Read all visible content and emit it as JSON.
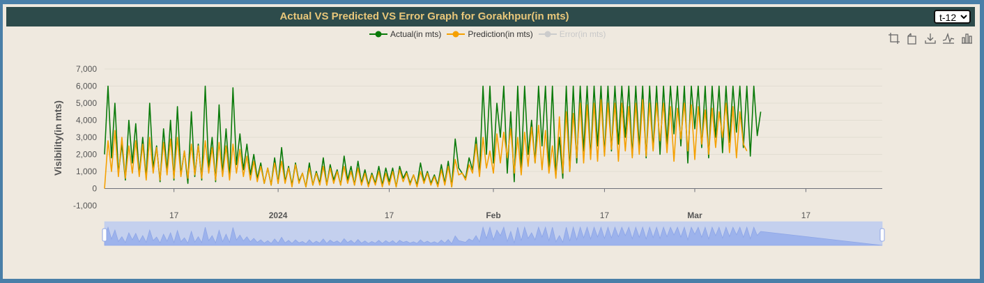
{
  "header": {
    "title": "Actual VS Predicted VS Error Graph for Gorakhpur(in mts)",
    "selector_value": "t-12"
  },
  "legend": {
    "items": [
      {
        "label": "Actual(in mts)",
        "color": "#0a7a0a",
        "active": true
      },
      {
        "label": "Prediction(in mts)",
        "color": "#f5a000",
        "active": true
      },
      {
        "label": "Error(in mts)",
        "color": "#cccccc",
        "active": false
      }
    ]
  },
  "toolbox": [
    "zoom-icon",
    "zoom-reset-icon",
    "download-icon",
    "line-chart-icon",
    "bar-chart-icon"
  ],
  "chart_data": {
    "type": "line",
    "title": "Actual VS Predicted VS Error Graph for Gorakhpur(in mts)",
    "ylabel": "Visibility(in mts)",
    "ylim": [
      -1000,
      7000
    ],
    "yticks": [
      "7,000",
      "6,000",
      "5,000",
      "4,000",
      "3,000",
      "2,000",
      "1,000",
      "0",
      "-1,000"
    ],
    "xrange": [
      "2023-12-07",
      "2024-03-28"
    ],
    "xticks": [
      {
        "label": "17",
        "date": "2023-12-17",
        "bold": false
      },
      {
        "label": "2024",
        "date": "2024-01-01",
        "bold": true
      },
      {
        "label": "17",
        "date": "2024-01-17",
        "bold": false
      },
      {
        "label": "Feb",
        "date": "2024-02-01",
        "bold": true
      },
      {
        "label": "17",
        "date": "2024-02-17",
        "bold": false
      },
      {
        "label": "Mar",
        "date": "2024-03-01",
        "bold": true
      },
      {
        "label": "17",
        "date": "2024-03-17",
        "bold": false
      }
    ],
    "series": [
      {
        "name": "Actual(in mts)",
        "color": "#0a7a0a",
        "sample_every_hours": 12,
        "start": "2023-12-07",
        "values": [
          2000,
          6000,
          1800,
          5000,
          900,
          2600,
          500,
          4000,
          1500,
          3800,
          800,
          3000,
          600,
          5000,
          1200,
          2500,
          400,
          3500,
          1000,
          4000,
          500,
          4800,
          800,
          2200,
          300,
          4500,
          700,
          2600,
          500,
          6000,
          1200,
          3000,
          400,
          4900,
          800,
          3500,
          600,
          5900,
          1400,
          3200,
          1100,
          2600,
          800,
          2000,
          600,
          1500,
          300,
          1200,
          200,
          1800,
          300,
          2400,
          400,
          1300,
          200,
          1500,
          400,
          900,
          100,
          1500,
          200,
          1000,
          300,
          1800,
          200,
          1400,
          500,
          1100,
          200,
          1900,
          500,
          1300,
          200,
          1600,
          300,
          1100,
          200,
          900,
          300,
          1300,
          200,
          1200,
          400,
          1200,
          100,
          1300,
          600,
          1000,
          300,
          800,
          200,
          1500,
          400,
          1000,
          300,
          800,
          200,
          1400,
          300,
          1600,
          100,
          2900,
          1200,
          900,
          600,
          1800,
          1100,
          3000,
          800,
          6000,
          2000,
          6000,
          1500,
          5000,
          3000,
          6000,
          900,
          4500,
          400,
          6000,
          1200,
          6000,
          2000,
          4000,
          1500,
          6000,
          2500,
          6000,
          1200,
          6000,
          800,
          3000,
          600,
          6000,
          1000,
          6000,
          1500,
          6000,
          2200,
          6000,
          1800,
          6000,
          2500,
          6000,
          2000,
          6000,
          2200,
          6000,
          2600,
          6000,
          3000,
          6000,
          1900,
          6000,
          2400,
          6000,
          1800,
          6000,
          2300,
          6000,
          2000,
          6000,
          2600,
          6000,
          3200,
          6000,
          2500,
          6000,
          1500,
          6000,
          3500,
          6000,
          2400,
          6000,
          1800,
          6000,
          3000,
          6000,
          2100,
          6000,
          2700,
          6000,
          3300,
          6000,
          2400,
          6000,
          1900,
          6000,
          3100,
          4500
        ]
      },
      {
        "name": "Prediction(in mts)",
        "color": "#f5a000",
        "sample_every_hours": 12,
        "start": "2023-12-07",
        "values": [
          0,
          2800,
          1000,
          3400,
          700,
          3000,
          600,
          2500,
          900,
          2800,
          700,
          2600,
          500,
          3000,
          900,
          2400,
          500,
          2700,
          800,
          2900,
          600,
          3000,
          700,
          2200,
          600,
          2600,
          800,
          2500,
          600,
          2800,
          900,
          2400,
          500,
          2700,
          700,
          2500,
          500,
          2600,
          900,
          2300,
          700,
          1900,
          500,
          1600,
          400,
          1300,
          300,
          1200,
          200,
          1500,
          300,
          1600,
          300,
          1200,
          100,
          1400,
          300,
          900,
          100,
          1200,
          200,
          900,
          200,
          1300,
          200,
          1200,
          300,
          1000,
          200,
          1300,
          300,
          1000,
          200,
          1200,
          200,
          900,
          100,
          800,
          200,
          1000,
          100,
          900,
          200,
          1000,
          100,
          1100,
          400,
          900,
          200,
          800,
          100,
          1000,
          300,
          900,
          200,
          700,
          100,
          1100,
          200,
          1300,
          100,
          1700,
          800,
          900,
          500,
          1400,
          900,
          2600,
          700,
          3000,
          1200,
          2200,
          900,
          3200,
          1500,
          3300,
          1800,
          3500,
          900,
          3000,
          800,
          3300,
          1300,
          3600,
          1500,
          3700,
          1100,
          3400,
          900,
          2500,
          600,
          4200,
          900,
          4500,
          1000,
          4400,
          1800,
          5000,
          1500,
          4900,
          1700,
          5000,
          1600,
          5200,
          1900,
          5000,
          2300,
          5000,
          1600,
          5000,
          2200,
          4800,
          1800,
          5000,
          2000,
          5200,
          1900,
          5000,
          2200,
          5000,
          2800,
          5000,
          2100,
          4800,
          1600,
          4700,
          2900,
          5000,
          2200,
          4900,
          1700,
          4800,
          2600,
          4600,
          2000,
          4700,
          2400,
          4500,
          3000,
          5000,
          2100,
          4800,
          1800,
          4500,
          2600,
          2200
        ]
      }
    ]
  },
  "datazoom": {
    "start_percent": 0,
    "end_percent": 100
  }
}
